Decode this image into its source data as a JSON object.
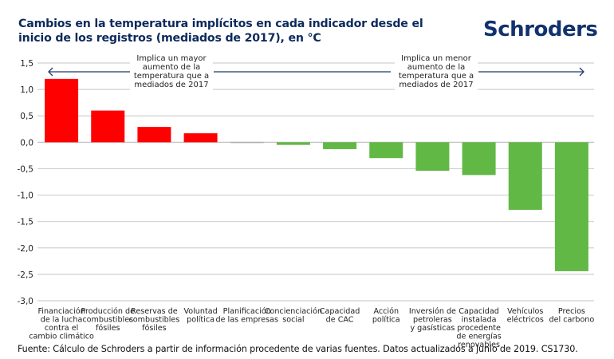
{
  "header": {
    "title": "Cambios en la temperatura implícitos en cada indicador desde el inicio de los registros (mediados de 2017), en °C",
    "logo": "Schroders"
  },
  "footer": {
    "source": "Fuente: Cálculo de Schroders a partir de información procedente de varias fuentes. Datos actualizados a junio de 2019. CS1730."
  },
  "colors": {
    "positive": "#ff0000",
    "negative": "#62b845",
    "zero": "#b0b0b0",
    "arrow": "#1f3b66",
    "grid": "#d0d0d0",
    "title": "#0d2a5c"
  },
  "chart_data": {
    "type": "bar",
    "title": "Cambios en la temperatura implícitos en cada indicador desde el inicio de los registros (mediados de 2017), en °C",
    "xlabel": "",
    "ylabel": "",
    "ylim": [
      -3.0,
      1.5
    ],
    "yticks": [
      1.5,
      1.0,
      0.5,
      0.0,
      -0.5,
      -1.0,
      -1.5,
      -2.0,
      -2.5,
      -3.0
    ],
    "ytick_labels": [
      "1,5",
      "1,0",
      "0,5",
      "0,0",
      "-0,5",
      "-1,0",
      "-1,5",
      "-2,0",
      "-2,5",
      "-3,0"
    ],
    "grid": true,
    "categories": [
      [
        "Financiación",
        "de la lucha",
        "contra el",
        "cambio climático"
      ],
      [
        "Producción de",
        "combustibles",
        "fósiles"
      ],
      [
        "Reservas de",
        "combustibles",
        "fósiles"
      ],
      [
        "Voluntad",
        "política"
      ],
      [
        "Planificación",
        "de las empresas"
      ],
      [
        "Concienciación",
        "social"
      ],
      [
        "Capacidad",
        "de CAC"
      ],
      [
        "Acción",
        "política"
      ],
      [
        "Inversión de",
        "petroleras",
        "y gasísticas"
      ],
      [
        "Capacidad",
        "instalada",
        "procedente",
        "de energías",
        "renovables"
      ],
      [
        "Vehículos",
        "eléctricos"
      ],
      [
        "Precios",
        "del carbono"
      ]
    ],
    "values": [
      1.2,
      0.6,
      0.29,
      0.17,
      -0.01,
      -0.05,
      -0.13,
      -0.3,
      -0.54,
      -0.62,
      -1.28,
      -2.44
    ],
    "annotations": [
      {
        "text": [
          "Implica un mayor",
          "aumento de la",
          "temperatura que a",
          "mediados de 2017"
        ],
        "direction": "left"
      },
      {
        "text": [
          "Implica un menor",
          "aumento de la",
          "temperatura que a",
          "mediados de 2017"
        ],
        "direction": "right"
      }
    ]
  }
}
